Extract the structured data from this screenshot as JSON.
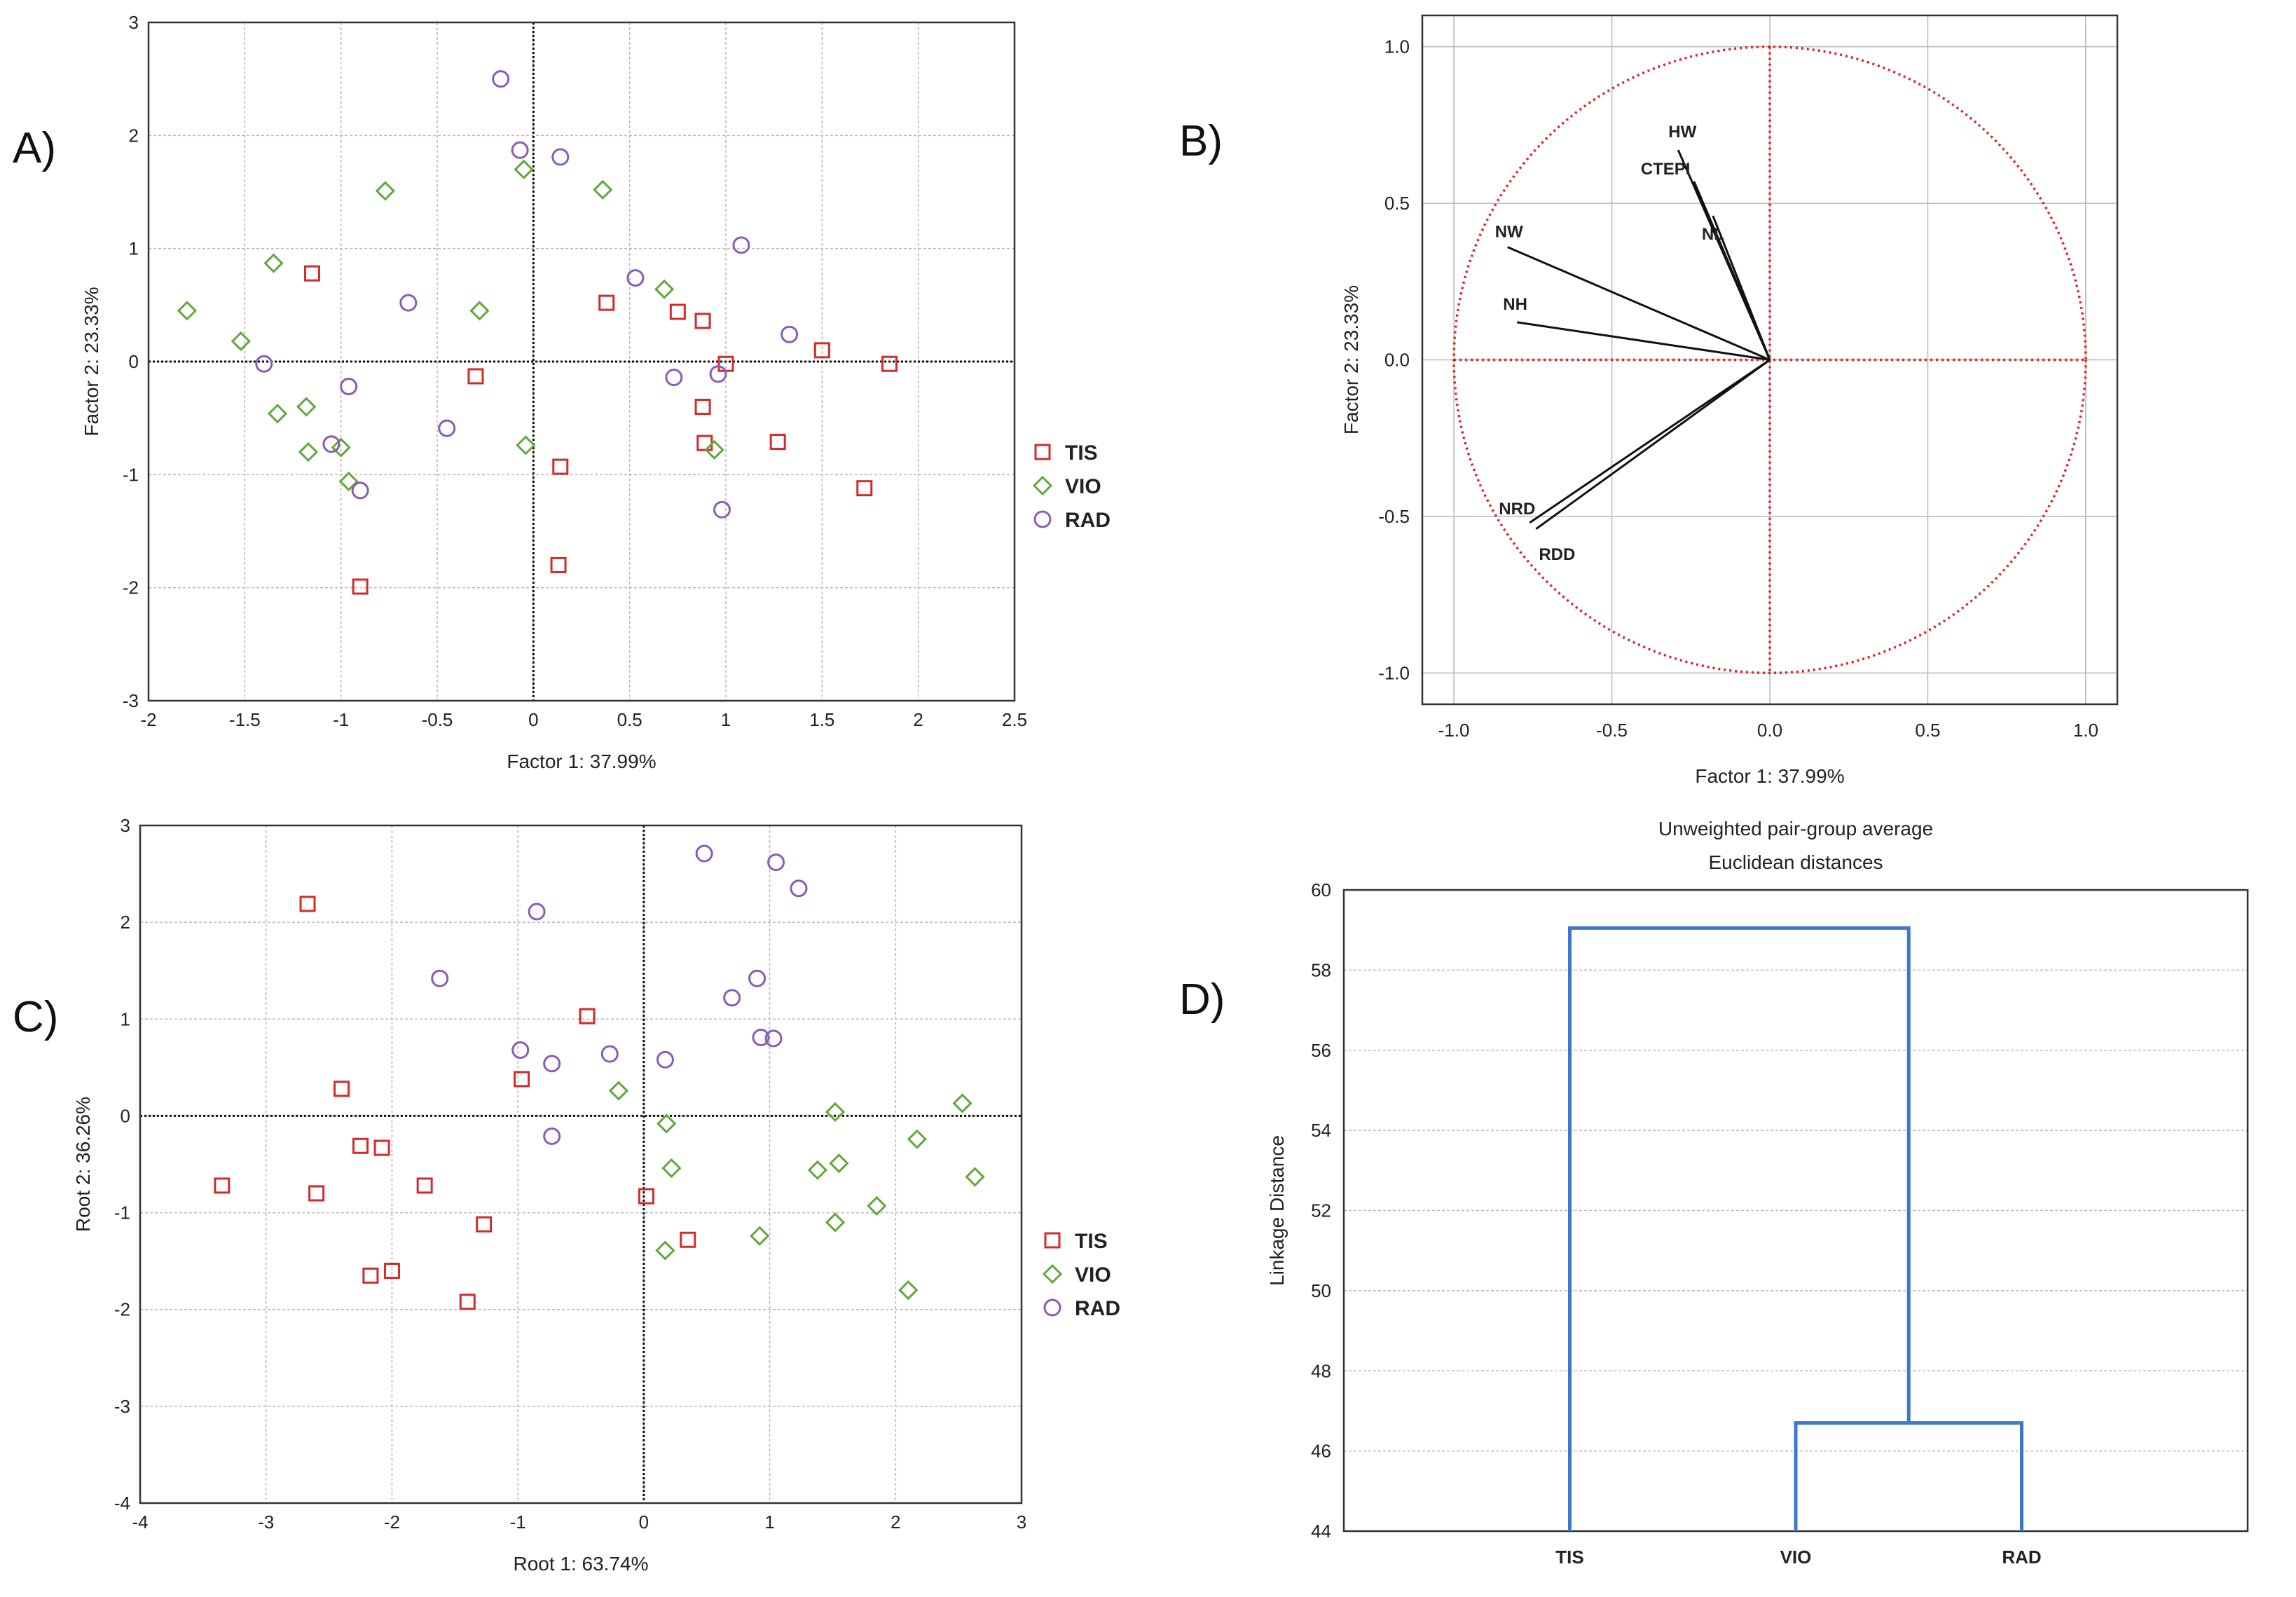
{
  "panels": {
    "A": {
      "label": "A)"
    },
    "B": {
      "label": "B)"
    },
    "C": {
      "label": "C)"
    },
    "D": {
      "label": "D)"
    }
  },
  "colors": {
    "TIS": "#d42a2a",
    "VIO": "#63a83a",
    "RAD": "#8a5cb5",
    "circle": "#e02020",
    "dendro": "#3f78c8",
    "grid": "#b8b8b8"
  },
  "chart_data": [
    {
      "id": "A",
      "type": "scatter",
      "xlabel": "Factor 1: 37.99%",
      "ylabel": "Factor 2: 23.33%",
      "xlim": [
        -2,
        2.5
      ],
      "ylim": [
        -3,
        3
      ],
      "xticks": [
        "-2",
        "-1.5",
        "-1",
        "-0.5",
        "0",
        "0.5",
        "1",
        "1.5",
        "2",
        "2.5"
      ],
      "yticks": [
        "-3",
        "-2",
        "-1",
        "0",
        "1",
        "2",
        "3"
      ],
      "legend": [
        "TIS",
        "VIO",
        "RAD"
      ],
      "series": [
        {
          "name": "TIS",
          "marker": "square",
          "points": [
            [
              -1.15,
              0.78
            ],
            [
              0.38,
              0.52
            ],
            [
              0.75,
              0.44
            ],
            [
              0.88,
              0.36
            ],
            [
              1.0,
              -0.02
            ],
            [
              1.5,
              0.1
            ],
            [
              1.85,
              -0.02
            ],
            [
              -0.3,
              -0.13
            ],
            [
              0.88,
              -0.4
            ],
            [
              0.89,
              -0.72
            ],
            [
              1.27,
              -0.71
            ],
            [
              0.14,
              -0.93
            ],
            [
              1.72,
              -1.12
            ],
            [
              0.13,
              -1.8
            ],
            [
              -0.9,
              -1.99
            ]
          ]
        },
        {
          "name": "VIO",
          "marker": "diamond",
          "points": [
            [
              -1.8,
              0.45
            ],
            [
              -1.35,
              0.87
            ],
            [
              -1.52,
              0.18
            ],
            [
              -0.77,
              1.51
            ],
            [
              -0.05,
              1.7
            ],
            [
              0.36,
              1.52
            ],
            [
              -0.28,
              0.45
            ],
            [
              0.68,
              0.64
            ],
            [
              -1.18,
              -0.4
            ],
            [
              -1.33,
              -0.46
            ],
            [
              -1.17,
              -0.8
            ],
            [
              -1.0,
              -0.76
            ],
            [
              -0.96,
              -1.06
            ],
            [
              -0.04,
              -0.74
            ],
            [
              0.94,
              -0.78
            ]
          ]
        },
        {
          "name": "RAD",
          "marker": "circle",
          "points": [
            [
              -0.17,
              2.5
            ],
            [
              -0.07,
              1.87
            ],
            [
              0.14,
              1.81
            ],
            [
              1.08,
              1.03
            ],
            [
              0.53,
              0.74
            ],
            [
              1.33,
              0.24
            ],
            [
              -0.65,
              0.52
            ],
            [
              -1.4,
              -0.02
            ],
            [
              -0.96,
              -0.22
            ],
            [
              0.73,
              -0.14
            ],
            [
              0.96,
              -0.11
            ],
            [
              -0.45,
              -0.59
            ],
            [
              -1.05,
              -0.73
            ],
            [
              -0.9,
              -1.14
            ],
            [
              0.98,
              -1.31
            ]
          ]
        }
      ]
    },
    {
      "id": "B",
      "type": "scatter",
      "subtype": "correlation-circle",
      "xlabel": "Factor 1: 37.99%",
      "ylabel": "Factor 2: 23.33%",
      "xlim": [
        -1.1,
        1.1
      ],
      "ylim": [
        -1.1,
        1.1
      ],
      "xticks": [
        "-1.0",
        "-0.5",
        "0.0",
        "0.5",
        "1.0"
      ],
      "yticks": [
        "-1.0",
        "-0.5",
        "0.0",
        "0.5",
        "1.0"
      ],
      "vectors": [
        {
          "name": "HW",
          "x": -0.29,
          "y": 0.67
        },
        {
          "name": "CTEPI",
          "x": -0.24,
          "y": 0.57
        },
        {
          "name": "NL",
          "x": -0.18,
          "y": 0.46
        },
        {
          "name": "NW",
          "x": -0.83,
          "y": 0.36
        },
        {
          "name": "NH",
          "x": -0.8,
          "y": 0.12
        },
        {
          "name": "NRD",
          "x": -0.76,
          "y": -0.52
        },
        {
          "name": "RDD",
          "x": -0.74,
          "y": -0.54
        }
      ]
    },
    {
      "id": "C",
      "type": "scatter",
      "xlabel": "Root 1: 63.74%",
      "ylabel": "Root 2: 36.26%",
      "xlim": [
        -4,
        3
      ],
      "ylim": [
        -4,
        3
      ],
      "xticks": [
        "-4",
        "-3",
        "-2",
        "-1",
        "0",
        "1",
        "2",
        "3"
      ],
      "yticks": [
        "-4",
        "-3",
        "-2",
        "-1",
        "0",
        "1",
        "2",
        "3"
      ],
      "legend": [
        "TIS",
        "VIO",
        "RAD"
      ],
      "series": [
        {
          "name": "TIS",
          "marker": "square",
          "points": [
            [
              -2.67,
              2.19
            ],
            [
              -0.45,
              1.03
            ],
            [
              -0.97,
              0.38
            ],
            [
              -2.4,
              0.28
            ],
            [
              -2.25,
              -0.31
            ],
            [
              -2.08,
              -0.33
            ],
            [
              -1.74,
              -0.72
            ],
            [
              -3.35,
              -0.72
            ],
            [
              -2.6,
              -0.8
            ],
            [
              -1.27,
              -1.12
            ],
            [
              0.02,
              -0.83
            ],
            [
              0.35,
              -1.28
            ],
            [
              -2.17,
              -1.65
            ],
            [
              -2.0,
              -1.6
            ],
            [
              -1.4,
              -1.92
            ]
          ]
        },
        {
          "name": "VIO",
          "marker": "diamond",
          "points": [
            [
              -0.2,
              0.26
            ],
            [
              0.18,
              -0.08
            ],
            [
              1.52,
              0.04
            ],
            [
              2.53,
              0.13
            ],
            [
              2.17,
              -0.24
            ],
            [
              0.22,
              -0.54
            ],
            [
              1.38,
              -0.56
            ],
            [
              1.55,
              -0.49
            ],
            [
              2.63,
              -0.63
            ],
            [
              1.52,
              -1.1
            ],
            [
              1.85,
              -0.93
            ],
            [
              0.92,
              -1.24
            ],
            [
              0.17,
              -1.39
            ],
            [
              2.1,
              -1.8
            ]
          ]
        },
        {
          "name": "RAD",
          "marker": "circle",
          "points": [
            [
              0.48,
              2.71
            ],
            [
              1.05,
              2.62
            ],
            [
              1.23,
              2.35
            ],
            [
              -0.85,
              2.11
            ],
            [
              -1.62,
              1.42
            ],
            [
              0.9,
              1.42
            ],
            [
              0.7,
              1.22
            ],
            [
              -0.98,
              0.68
            ],
            [
              -0.73,
              0.54
            ],
            [
              -0.27,
              0.64
            ],
            [
              0.17,
              0.58
            ],
            [
              0.93,
              0.81
            ],
            [
              1.03,
              0.8
            ],
            [
              -0.73,
              -0.21
            ]
          ]
        }
      ]
    },
    {
      "id": "D",
      "type": "dendrogram",
      "title": "Unweighted pair-group average",
      "subtitle": "Euclidean distances",
      "ylabel": "Linkage Distance",
      "ylim": [
        44,
        60
      ],
      "yticks": [
        "44",
        "46",
        "48",
        "50",
        "52",
        "54",
        "56",
        "58",
        "60"
      ],
      "leaves": [
        "TIS",
        "VIO",
        "RAD"
      ],
      "merges": [
        {
          "left": "VIO",
          "right": "RAD",
          "height": 46.7
        },
        {
          "left": "TIS",
          "right": "VIO+RAD",
          "height": 59.05
        }
      ]
    }
  ]
}
